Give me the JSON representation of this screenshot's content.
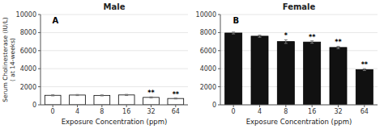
{
  "chart_data": [
    {
      "type": "bar",
      "title": "Male",
      "panel_label": "A",
      "categories": [
        "0",
        "4",
        "8",
        "16",
        "32",
        "64"
      ],
      "values": [
        1050,
        1080,
        1040,
        1090,
        820,
        700
      ],
      "errors": [
        60,
        60,
        55,
        65,
        60,
        55
      ],
      "color": "#ffffff",
      "annotations": [
        {
          "text": "**",
          "category": "32"
        },
        {
          "text": "**",
          "category": "64"
        }
      ],
      "xlabel": "Exposure Concentration (ppm)",
      "ylabel": "Serum Cholinesterase (IU/L)\n( at 14-weeks)",
      "ylim": [
        0,
        10000
      ],
      "yticks": [
        0,
        2000,
        4000,
        6000,
        8000,
        10000
      ]
    },
    {
      "type": "bar",
      "title": "Female",
      "panel_label": "B",
      "categories": [
        "0",
        "4",
        "8",
        "16",
        "32",
        "64"
      ],
      "values": [
        7950,
        7600,
        7000,
        6950,
        6350,
        3900
      ],
      "errors": [
        100,
        120,
        200,
        130,
        130,
        100
      ],
      "color": "#111111",
      "annotations": [
        {
          "text": "*",
          "category": "8"
        },
        {
          "text": "**",
          "category": "16"
        },
        {
          "text": "**",
          "category": "32"
        },
        {
          "text": "**",
          "category": "64"
        }
      ],
      "xlabel": "Exposure Concentration (ppm)",
      "ylim": [
        0,
        10000
      ],
      "yticks": [
        0,
        2000,
        4000,
        6000,
        8000,
        10000
      ]
    }
  ]
}
